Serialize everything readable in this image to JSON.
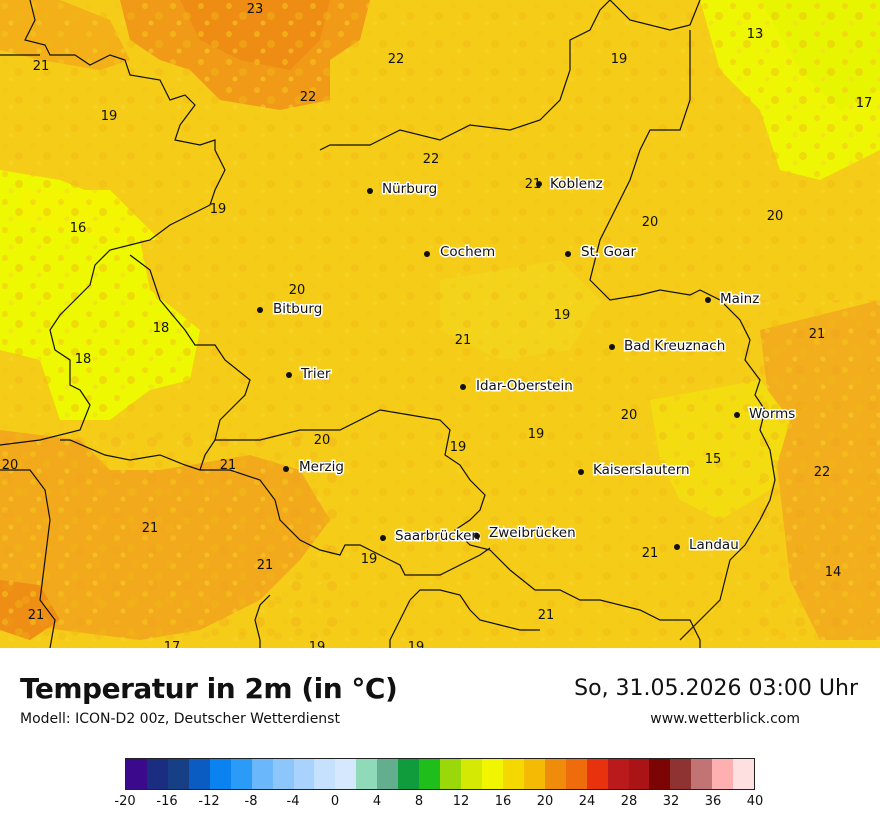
{
  "title": "Temperatur in 2m (in °C)",
  "model": "Modell: ICON-D2 00z, Deutscher Wetterdienst",
  "datetime": "So, 31.05.2026 03:00 Uhr",
  "website": "www.wetterblick.com",
  "cities": [
    {
      "name": "Nürburg"
    },
    {
      "name": "Koblenz"
    },
    {
      "name": "Cochem"
    },
    {
      "name": "St. Goar"
    },
    {
      "name": "Mainz"
    },
    {
      "name": "Bitburg"
    },
    {
      "name": "Bad Kreuznach"
    },
    {
      "name": "Trier"
    },
    {
      "name": "Idar-Oberstein"
    },
    {
      "name": "Worms"
    },
    {
      "name": "Merzig"
    },
    {
      "name": "Kaiserslautern"
    },
    {
      "name": "Saarbrücken"
    },
    {
      "name": "Zweibrücken"
    },
    {
      "name": "Landau"
    }
  ],
  "temperature_labels": [
    "23",
    "22",
    "22",
    "21",
    "19",
    "19",
    "13",
    "17",
    "22",
    "21",
    "16",
    "19",
    "20",
    "20",
    "18",
    "20",
    "19",
    "18",
    "21",
    "21",
    "20",
    "19",
    "20",
    "19",
    "20",
    "21",
    "21",
    "15",
    "22",
    "21",
    "19",
    "21",
    "14",
    "21",
    "21",
    "17",
    "19",
    "19"
  ],
  "colorscale": {
    "colors": [
      "#3b0a8c",
      "#1a2d80",
      "#173f86",
      "#0a5cc2",
      "#0a82ef",
      "#2a9bf6",
      "#6bb7fb",
      "#8dc6fb",
      "#a9d2fc",
      "#c6e1fd",
      "#d5e8fe",
      "#8fdbb9",
      "#62ae8e",
      "#109b3c",
      "#1fbe1a",
      "#9ad80a",
      "#d4ea04",
      "#f1f600",
      "#f5d800",
      "#f3bb04",
      "#f08c0c",
      "#ee6c0c",
      "#e8320e",
      "#bb1a1c",
      "#aa1417",
      "#7c0404",
      "#8e3232",
      "#c27373",
      "#feb0b0",
      "#ffe0e0"
    ],
    "ticks": [
      "-20",
      "-16",
      "-12",
      "-8",
      "-4",
      "0",
      "4",
      "8",
      "12",
      "16",
      "20",
      "24",
      "28",
      "32",
      "36",
      "40"
    ]
  }
}
